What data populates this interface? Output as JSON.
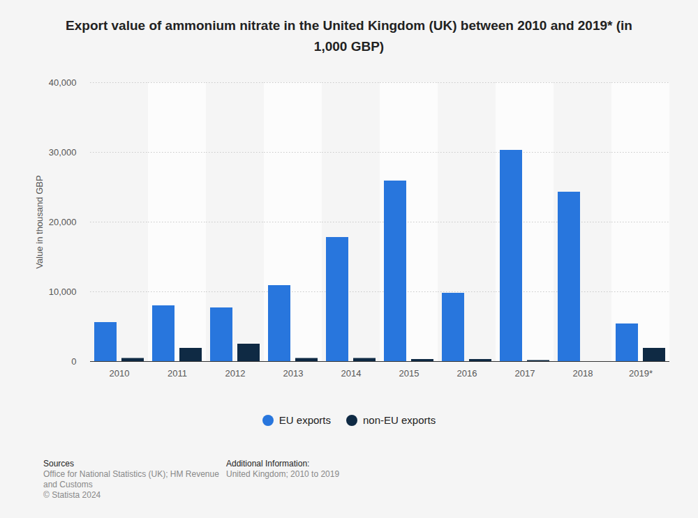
{
  "chart_data": {
    "type": "bar",
    "title": "Export value of ammonium nitrate in the United Kingdom (UK) between 2010 and 2019* (in 1,000 GBP)",
    "y_label": "Value in thousand GBP",
    "categories": [
      "2010",
      "2011",
      "2012",
      "2013",
      "2014",
      "2015",
      "2016",
      "2017",
      "2018",
      "2019*"
    ],
    "series": [
      {
        "name": "EU exports",
        "color": "#2876dd",
        "values": [
          5600,
          8000,
          7700,
          10900,
          17800,
          25900,
          9800,
          30300,
          24300,
          5400
        ]
      },
      {
        "name": "non-EU exports",
        "color": "#0f2a44",
        "values": [
          450,
          1900,
          2500,
          450,
          450,
          300,
          300,
          150,
          0,
          1900
        ]
      }
    ],
    "ylim": [
      0,
      40000
    ],
    "yticks": [
      0,
      {
        "value": 10000,
        "label": "10,000"
      },
      {
        "value": 20000,
        "label": "20,000"
      },
      {
        "value": 30000,
        "label": "30,000"
      },
      {
        "value": 40000,
        "label": "40,000"
      }
    ],
    "grid": true,
    "legend": "bottom",
    "source_heading": "Sources",
    "source": "Office for National Statistics (UK); HM Revenue and Customs",
    "copyright": "© Statista 2024",
    "additional_info_heading": "Additional Information:",
    "additional_info": "United Kingdom; 2010 to 2019"
  }
}
